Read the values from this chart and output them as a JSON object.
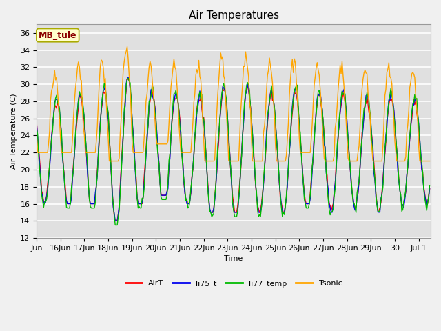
{
  "title": "Air Temperatures",
  "ylabel": "Air Temperature (C)",
  "xlabel": "Time",
  "ylim": [
    12,
    37
  ],
  "yticks": [
    12,
    14,
    16,
    18,
    20,
    22,
    24,
    26,
    28,
    30,
    32,
    34,
    36
  ],
  "annotation_text": "MB_tule",
  "annotation_color": "#8B0000",
  "annotation_bg": "#FFFFCC",
  "series_colors": {
    "AirT": "#FF0000",
    "li75_t": "#0000EE",
    "li77_temp": "#00BB00",
    "Tsonic": "#FFA500"
  },
  "series_lw": 1.0,
  "bg_color": "#E0E0E0",
  "fig_bg": "#F0F0F0",
  "grid_color": "#FFFFFF",
  "title_fontsize": 11,
  "axis_fontsize": 8,
  "tick_fontsize": 8,
  "legend_fontsize": 8
}
